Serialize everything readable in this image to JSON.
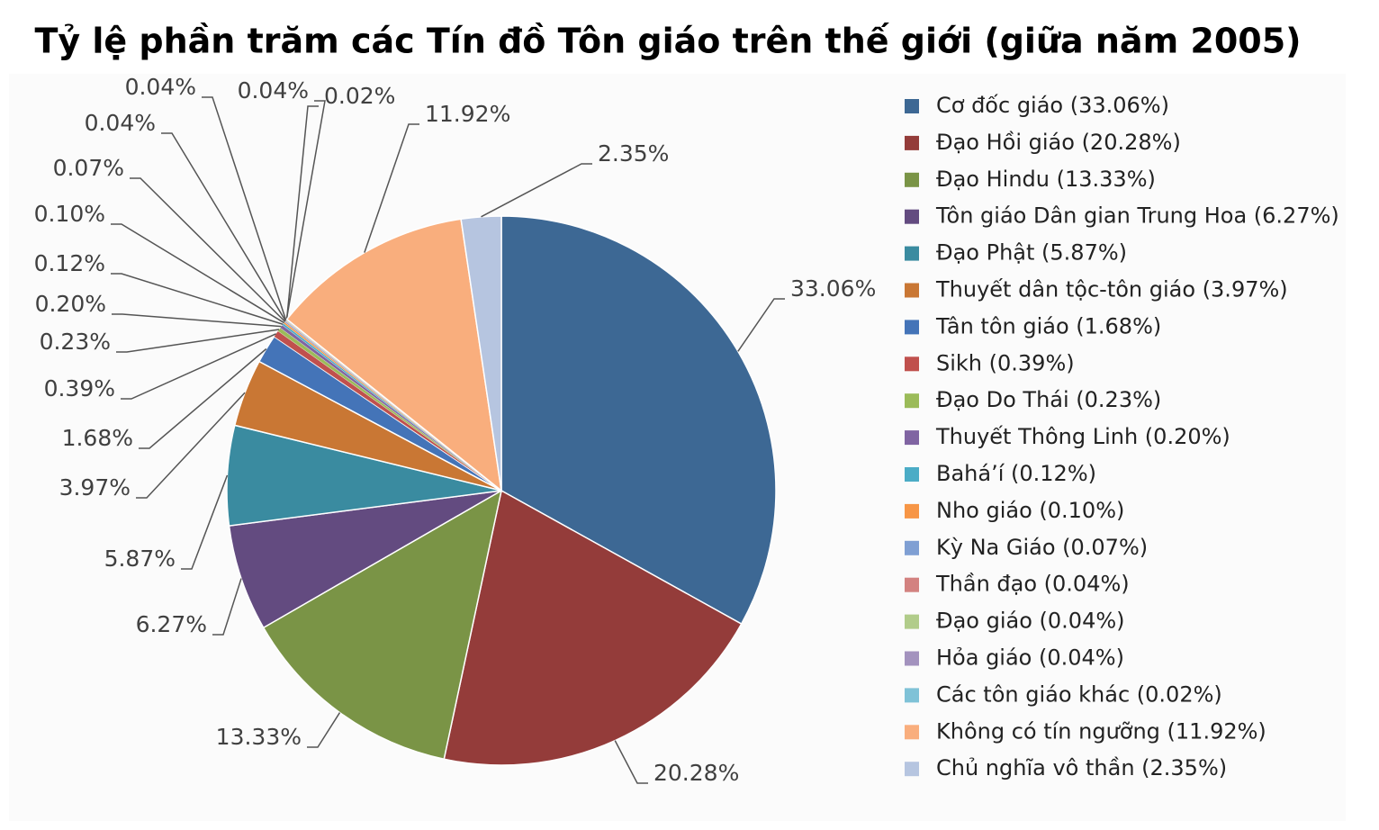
{
  "chart_data": {
    "type": "pie",
    "title": "Tỷ lệ phần trăm các Tín đồ Tôn giáo trên thế giới (giữa năm 2005)",
    "categories": [
      "Cơ đốc giáo (33.06%)",
      "Đạo Hồi giáo (20.28%)",
      "Đạo Hindu (13.33%)",
      "Tôn giáo Dân gian Trung Hoa (6.27%)",
      "Đạo Phật (5.87%)",
      "Thuyết dân tộc-tôn giáo (3.97%)",
      "Tân tôn giáo (1.68%)",
      "Sikh (0.39%)",
      "Đạo Do Thái (0.23%)",
      "Thuyết Thông Linh (0.20%)",
      "Bahá’í (0.12%)",
      "Nho giáo (0.10%)",
      "Kỳ Na Giáo (0.07%)",
      "Thần đạo (0.04%)",
      "Đạo giáo (0.04%)",
      "Hỏa giáo (0.04%)",
      "Các tôn giáo khác (0.02%)",
      "Không có tín ngưỡng (11.92%)",
      "Chủ nghĩa vô thần (2.35%)"
    ],
    "values": [
      33.06,
      20.28,
      13.33,
      6.27,
      5.87,
      3.97,
      1.68,
      0.39,
      0.23,
      0.2,
      0.12,
      0.1,
      0.07,
      0.04,
      0.04,
      0.04,
      0.02,
      11.92,
      2.35
    ],
    "value_labels": [
      "33.06%",
      "20.28%",
      "13.33%",
      "6.27%",
      "5.87%",
      "3.97%",
      "1.68%",
      "0.39%",
      "0.23%",
      "0.20%",
      "0.12%",
      "0.10%",
      "0.07%",
      "0.04%",
      "0.04%",
      "0.04%",
      "0.02%",
      "11.92%",
      "2.35%"
    ],
    "colors": [
      "#3d6894",
      "#943c3a",
      "#7a9446",
      "#634b80",
      "#3a8ba0",
      "#c97734",
      "#4474b8",
      "#c0504d",
      "#9bbb59",
      "#8064a2",
      "#4bacc6",
      "#f79646",
      "#7f9fd3",
      "#d38280",
      "#b1cc8a",
      "#a392be",
      "#7fc2d7",
      "#f9ae7d",
      "#b6c5e0"
    ],
    "legend": "right"
  }
}
